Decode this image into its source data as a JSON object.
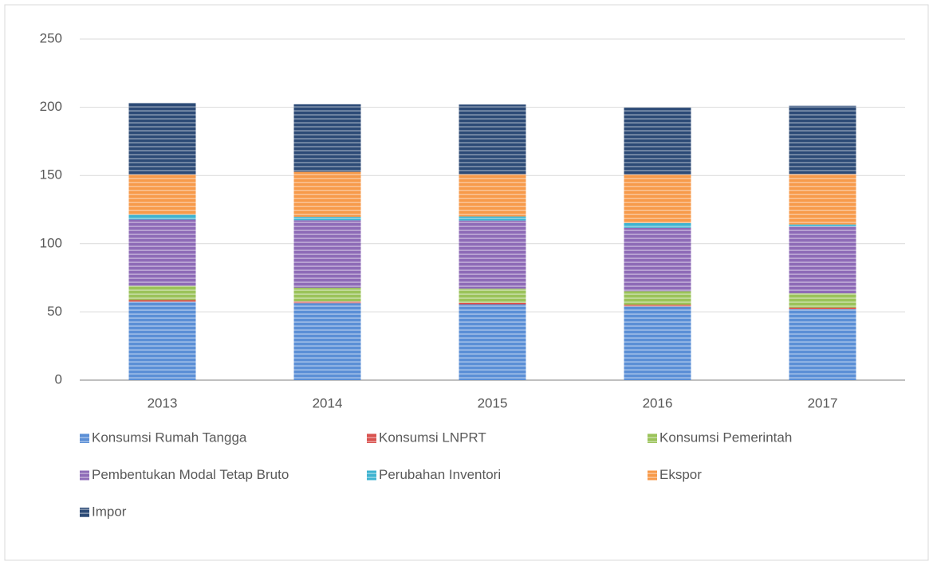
{
  "chart_data": {
    "type": "stacked_bar",
    "categories": [
      "2013",
      "2014",
      "2015",
      "2016",
      "2017"
    ],
    "series": [
      {
        "name": "Konsumsi Rumah Tangga",
        "color": "#5b8fd6",
        "values": [
          57.5,
          56.5,
          55.5,
          54,
          52
        ]
      },
      {
        "name": "Konsumsi LNPRT",
        "color": "#d9534f",
        "values": [
          1.2,
          1.2,
          1.2,
          1.2,
          1.1
        ]
      },
      {
        "name": "Konsumsi Pemerintah",
        "color": "#9bc35a",
        "values": [
          10.5,
          10,
          10.3,
          10,
          10.5
        ]
      },
      {
        "name": "Pembentukan Modal Tetap Bruto",
        "color": "#8e6bb7",
        "values": [
          48.5,
          49.5,
          50,
          46.5,
          49
        ]
      },
      {
        "name": "Perubahan Inventori",
        "color": "#3eb3d0",
        "values": [
          3.5,
          2.5,
          3,
          3.5,
          1.5
        ]
      },
      {
        "name": "Ekspor",
        "color": "#f79a4a",
        "values": [
          29.5,
          33,
          31,
          35.5,
          37
        ]
      },
      {
        "name": "Impor",
        "color": "#2c4a76",
        "values": [
          52.5,
          49.5,
          51,
          49,
          50
        ]
      }
    ],
    "ylim": [
      0,
      250
    ],
    "yticks": [
      0,
      50,
      100,
      150,
      200,
      250
    ],
    "grid": true,
    "legend": "bottom"
  }
}
